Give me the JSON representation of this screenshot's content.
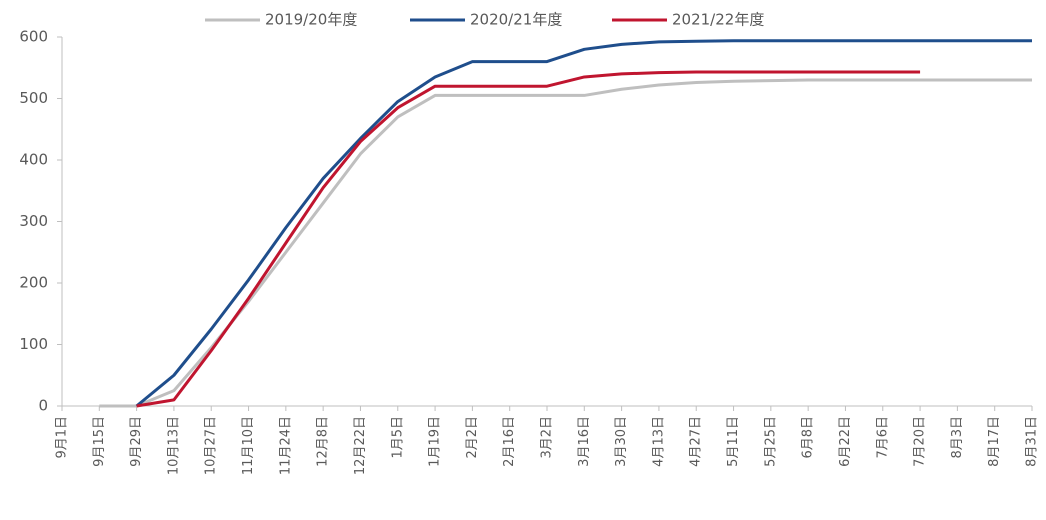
{
  "chart_data": {
    "type": "line",
    "categories": [
      "9月1日",
      "9月15日",
      "9月29日",
      "10月13日",
      "10月27日",
      "11月10日",
      "11月24日",
      "12月8日",
      "12月22日",
      "1月5日",
      "1月19日",
      "2月2日",
      "2月16日",
      "3月2日",
      "3月16日",
      "3月30日",
      "4月13日",
      "4月27日",
      "5月11日",
      "5月25日",
      "6月8日",
      "6月22日",
      "7月6日",
      "7月20日",
      "8月3日",
      "8月17日",
      "8月31日"
    ],
    "series": [
      {
        "name": "2019/20年度",
        "color": "#bfbfbf",
        "values": [
          null,
          0,
          0,
          25,
          95,
          170,
          250,
          330,
          410,
          470,
          505,
          505,
          505,
          505,
          505,
          515,
          522,
          526,
          528,
          529,
          530,
          530,
          530,
          530,
          530,
          530,
          530
        ]
      },
      {
        "name": "2020/21年度",
        "color": "#1f4e8c",
        "values": [
          null,
          null,
          0,
          50,
          125,
          205,
          290,
          370,
          435,
          495,
          535,
          560,
          560,
          560,
          580,
          588,
          592,
          593,
          594,
          594,
          594,
          594,
          594,
          594,
          594,
          594,
          594
        ]
      },
      {
        "name": "2021/22年度",
        "color": "#c0152f",
        "values": [
          null,
          null,
          0,
          10,
          90,
          175,
          265,
          355,
          430,
          485,
          520,
          520,
          520,
          520,
          535,
          540,
          542,
          543,
          543,
          543,
          543,
          543,
          543,
          543,
          null,
          null,
          null
        ]
      }
    ],
    "ylim": [
      0,
      600
    ],
    "yticks": [
      0,
      100,
      200,
      300,
      400,
      500,
      600
    ],
    "grid": false
  }
}
